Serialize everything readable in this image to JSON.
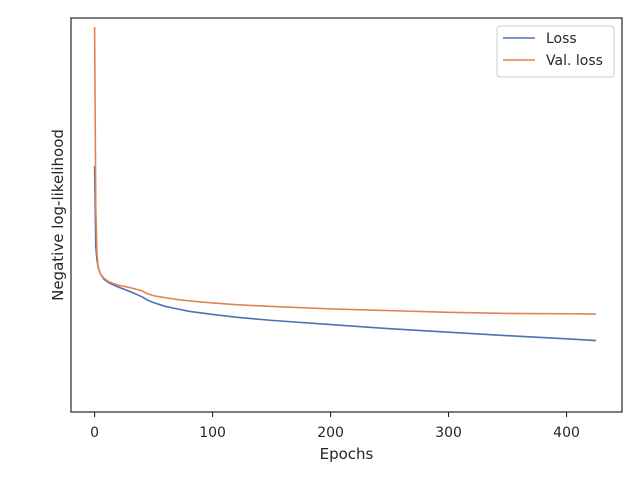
{
  "chart_data": {
    "type": "line",
    "title": "",
    "xlabel": "Epochs",
    "ylabel": "Negative log-likelihood",
    "xlim": [
      -20,
      447
    ],
    "ylim": [
      0,
      1
    ],
    "xticks": [
      0,
      100,
      200,
      300,
      400
    ],
    "yticks": [],
    "grid": false,
    "legend": {
      "position": "top-right",
      "entries": [
        "Loss",
        "Val. loss"
      ]
    },
    "colors": {
      "Loss": "#4c72b0",
      "Val. loss": "#dd8452",
      "axes": "#262626"
    },
    "series": [
      {
        "name": "Loss",
        "x": [
          0,
          1,
          2,
          3,
          5,
          8,
          12,
          20,
          30,
          40,
          45,
          50,
          60,
          70,
          80,
          100,
          120,
          150,
          200,
          250,
          300,
          350,
          400,
          425
        ],
        "y": [
          0.6,
          0.37,
          0.33,
          0.31,
          0.29,
          0.275,
          0.265,
          0.253,
          0.24,
          0.225,
          0.215,
          0.208,
          0.197,
          0.19,
          0.183,
          0.174,
          0.166,
          0.157,
          0.145,
          0.133,
          0.123,
          0.113,
          0.104,
          0.099
        ]
      },
      {
        "name": "Val. loss",
        "x": [
          0,
          1,
          2,
          3,
          5,
          8,
          12,
          20,
          30,
          40,
          45,
          50,
          60,
          70,
          80,
          100,
          120,
          150,
          200,
          250,
          300,
          350,
          400,
          425
        ],
        "y": [
          1.0,
          0.48,
          0.35,
          0.31,
          0.29,
          0.278,
          0.268,
          0.258,
          0.251,
          0.242,
          0.233,
          0.228,
          0.222,
          0.217,
          0.213,
          0.207,
          0.202,
          0.197,
          0.19,
          0.185,
          0.18,
          0.177,
          0.176,
          0.175
        ]
      }
    ]
  }
}
